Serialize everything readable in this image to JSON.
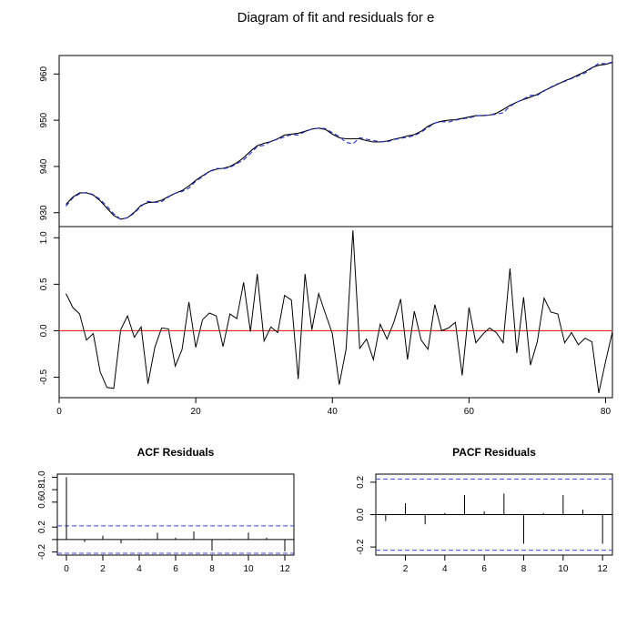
{
  "title": "Diagram of fit and residuals for e",
  "chart_data": [
    {
      "type": "line",
      "panel": "fit",
      "xlim": [
        0,
        81
      ],
      "ylim": [
        927,
        964
      ],
      "y_ticks": [
        930,
        940,
        950,
        960
      ],
      "x_ticks": [],
      "grid": false,
      "series": [
        {
          "line": "solid",
          "color": "#000000",
          "x": [
            1,
            2,
            3,
            4,
            5,
            6,
            7,
            8,
            9,
            10,
            11,
            12,
            13,
            14,
            15,
            16,
            17,
            18,
            19,
            20,
            21,
            22,
            23,
            24,
            25,
            26,
            27,
            28,
            29,
            30,
            31,
            32,
            33,
            34,
            35,
            36,
            37,
            38,
            39,
            40,
            41,
            42,
            43,
            44,
            45,
            46,
            47,
            48,
            49,
            50,
            51,
            52,
            53,
            54,
            55,
            56,
            57,
            58,
            59,
            60,
            61,
            62,
            63,
            64,
            65,
            66,
            67,
            68,
            69,
            70,
            71,
            72,
            73,
            74,
            75,
            76,
            77,
            78,
            79,
            80,
            81
          ],
          "y": [
            931.8,
            933.4,
            934.3,
            934.3,
            933.8,
            932.6,
            931.0,
            929.4,
            928.6,
            928.9,
            930.1,
            931.6,
            932.2,
            932.3,
            932.7,
            933.5,
            934.2,
            934.8,
            935.8,
            937.0,
            938.0,
            938.9,
            939.4,
            939.6,
            940.0,
            940.8,
            941.9,
            943.3,
            944.5,
            945.0,
            945.4,
            946.0,
            946.8,
            947.0,
            947.2,
            947.6,
            948.1,
            948.3,
            948.0,
            947.0,
            946.2,
            946.0,
            946.0,
            946.0,
            945.6,
            945.3,
            945.3,
            945.5,
            945.9,
            946.2,
            946.6,
            946.9,
            947.6,
            948.7,
            949.4,
            949.8,
            950.0,
            950.1,
            950.4,
            950.7,
            951.0,
            951.0,
            951.1,
            951.5,
            952.3,
            953.2,
            953.9,
            954.5,
            955.0,
            955.6,
            956.4,
            957.1,
            957.8,
            958.5,
            959.1,
            959.8,
            960.5,
            961.4,
            961.9,
            962.1,
            962.5
          ]
        },
        {
          "line": "dashed",
          "color": "#2233cc",
          "x": [
            1,
            2,
            3,
            4,
            5,
            6,
            7,
            8,
            9,
            10,
            11,
            12,
            13,
            14,
            15,
            16,
            17,
            18,
            19,
            20,
            21,
            22,
            23,
            24,
            25,
            26,
            27,
            28,
            29,
            30,
            31,
            32,
            33,
            34,
            35,
            36,
            37,
            38,
            39,
            40,
            41,
            42,
            43,
            44,
            45,
            46,
            47,
            48,
            49,
            50,
            51,
            52,
            53,
            54,
            55,
            56,
            57,
            58,
            59,
            60,
            61,
            62,
            63,
            64,
            65,
            66,
            67,
            68,
            69,
            70,
            71,
            72,
            73,
            74,
            75,
            76,
            77,
            78,
            79,
            80,
            81
          ],
          "y": [
            931.4,
            933.2,
            934.1,
            934.4,
            933.9,
            932.9,
            931.4,
            929.8,
            928.6,
            928.9,
            929.9,
            931.4,
            932.5,
            932.2,
            932.4,
            933.4,
            934.2,
            934.6,
            935.3,
            936.8,
            937.8,
            938.9,
            939.6,
            939.5,
            939.8,
            940.6,
            941.4,
            942.8,
            944.3,
            944.6,
            945.4,
            945.9,
            946.4,
            946.9,
            946.8,
            947.5,
            948.1,
            948.3,
            948.2,
            947.3,
            946.5,
            945.2,
            944.9,
            946.2,
            945.9,
            945.6,
            945.4,
            945.3,
            945.8,
            946.1,
            946.3,
            946.7,
            947.4,
            948.4,
            949.4,
            949.7,
            949.6,
            950.0,
            950.3,
            950.5,
            950.9,
            951.1,
            951.1,
            951.3,
            951.6,
            953.0,
            953.9,
            954.6,
            955.4,
            955.4,
            956.3,
            957.2,
            957.9,
            958.4,
            959.0,
            959.6,
            960.2,
            961.3,
            962.3,
            962.2,
            962.6
          ]
        }
      ]
    },
    {
      "type": "line",
      "panel": "residuals",
      "xlim": [
        0,
        81
      ],
      "ylim": [
        -0.72,
        1.12
      ],
      "y_ticks": [
        -0.5,
        0.0,
        0.5,
        1.0
      ],
      "y_tick_labels": [
        "-0.5",
        "0.0",
        "0.5",
        "1.0"
      ],
      "x_ticks": [
        0,
        20,
        40,
        60,
        80
      ],
      "grid": false,
      "reference_line": {
        "y": 0,
        "color": "#ee2222"
      },
      "series": [
        {
          "color": "#000000",
          "x": [
            1,
            2,
            3,
            4,
            5,
            6,
            7,
            8,
            9,
            10,
            11,
            12,
            13,
            14,
            15,
            16,
            17,
            18,
            19,
            20,
            21,
            22,
            23,
            24,
            25,
            26,
            27,
            28,
            29,
            30,
            31,
            32,
            33,
            34,
            35,
            36,
            37,
            38,
            39,
            40,
            41,
            42,
            43,
            44,
            45,
            46,
            47,
            48,
            49,
            50,
            51,
            52,
            53,
            54,
            55,
            56,
            57,
            58,
            59,
            60,
            61,
            62,
            63,
            64,
            65,
            66,
            67,
            68,
            69,
            70,
            71,
            72,
            73,
            74,
            75,
            76,
            77,
            78,
            79,
            80,
            81
          ],
          "y": [
            0.4,
            0.25,
            0.18,
            -0.1,
            -0.03,
            -0.44,
            -0.61,
            -0.62,
            0.01,
            0.16,
            -0.07,
            0.04,
            -0.57,
            -0.18,
            0.03,
            0.02,
            -0.38,
            -0.2,
            0.31,
            -0.18,
            0.12,
            0.19,
            0.16,
            -0.17,
            0.18,
            0.13,
            0.52,
            -0.01,
            0.61,
            -0.11,
            0.04,
            -0.02,
            0.38,
            0.33,
            -0.52,
            0.61,
            0.01,
            0.4,
            0.18,
            -0.03,
            -0.58,
            -0.2,
            1.08,
            -0.19,
            -0.09,
            -0.31,
            0.07,
            -0.09,
            0.09,
            0.34,
            -0.31,
            0.21,
            -0.1,
            -0.2,
            0.28,
            0.0,
            0.03,
            0.09,
            -0.48,
            0.25,
            -0.13,
            -0.04,
            0.03,
            -0.02,
            -0.13,
            0.67,
            -0.24,
            0.36,
            -0.37,
            -0.12,
            0.35,
            0.2,
            0.18,
            -0.13,
            -0.02,
            -0.15,
            -0.08,
            -0.12,
            -0.67,
            -0.33,
            -0.01
          ]
        }
      ]
    },
    {
      "type": "bar",
      "panel": "acf",
      "title": "ACF Residuals",
      "x": [
        0,
        1,
        2,
        3,
        4,
        5,
        6,
        7,
        8,
        9,
        10,
        11,
        12
      ],
      "values": [
        1.0,
        -0.04,
        0.06,
        -0.06,
        0.01,
        0.11,
        0.03,
        0.13,
        -0.18,
        0.01,
        0.11,
        0.03,
        -0.19
      ],
      "xlim": [
        -0.5,
        12.5
      ],
      "ylim": [
        -0.25,
        1.05
      ],
      "x_ticks": [
        0,
        2,
        4,
        6,
        8,
        10,
        12
      ],
      "y_ticks": [
        -0.2,
        0.0,
        0.2,
        0.6,
        0.8,
        1.0
      ],
      "y_tick_labels": [
        "-0.2",
        "",
        "0.2",
        "0.6",
        "0.8",
        "1.0"
      ],
      "confidence_bounds": [
        0.22,
        -0.22
      ],
      "grid": false
    },
    {
      "type": "bar",
      "panel": "pacf",
      "title": "PACF Residuals",
      "x": [
        1,
        2,
        3,
        4,
        5,
        6,
        7,
        8,
        9,
        10,
        11,
        12
      ],
      "values": [
        -0.04,
        0.07,
        -0.06,
        0.01,
        0.12,
        0.02,
        0.13,
        -0.18,
        0.01,
        0.12,
        0.03,
        -0.18
      ],
      "xlim": [
        0.5,
        12.5
      ],
      "ylim": [
        -0.25,
        0.25
      ],
      "x_ticks": [
        2,
        4,
        6,
        8,
        10,
        12
      ],
      "y_ticks": [
        -0.2,
        0.0,
        0.2
      ],
      "y_tick_labels": [
        "-0.2",
        "0.0",
        "0.2"
      ],
      "confidence_bounds": [
        0.22,
        -0.22
      ],
      "grid": false
    }
  ]
}
